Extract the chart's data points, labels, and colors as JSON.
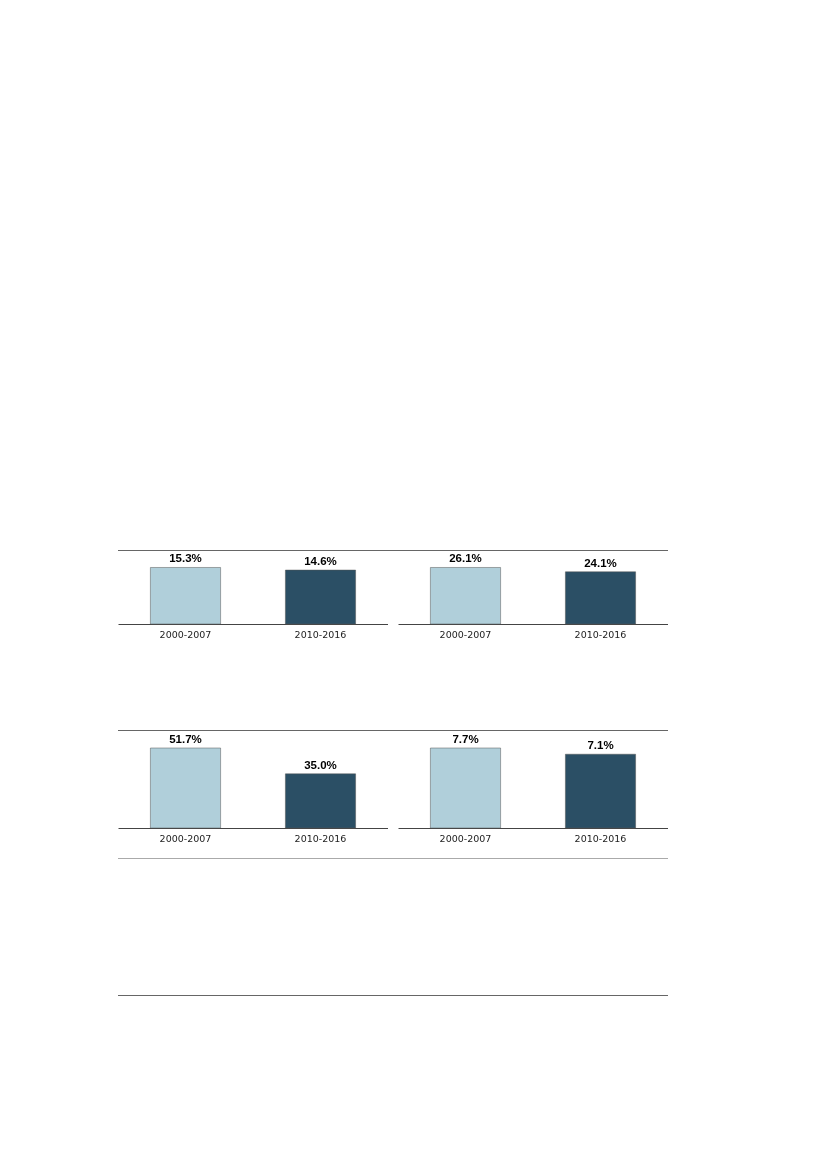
{
  "chart_data": [
    {
      "type": "bar",
      "categories": [
        "2000-2007",
        "2010-2016"
      ],
      "values": [
        15.3,
        14.6
      ],
      "colors": [
        "#b0cfda",
        "#2b4f65"
      ],
      "value_labels": [
        "15.3%",
        "14.6%"
      ]
    },
    {
      "type": "bar",
      "categories": [
        "2000-2007",
        "2010-2016"
      ],
      "values": [
        26.1,
        24.1
      ],
      "colors": [
        "#b0cfda",
        "#2b4f65"
      ],
      "value_labels": [
        "26.1%",
        "24.1%"
      ]
    },
    {
      "type": "bar",
      "categories": [
        "2000-2007",
        "2010-2016"
      ],
      "values": [
        51.7,
        35.0
      ],
      "colors": [
        "#b0cfda",
        "#2b4f65"
      ],
      "value_labels": [
        "51.7%",
        "35.0%"
      ]
    },
    {
      "type": "bar",
      "categories": [
        "2000-2007",
        "2010-2016"
      ],
      "values": [
        7.7,
        7.1
      ],
      "colors": [
        "#b0cfda",
        "#2b4f65"
      ],
      "value_labels": [
        "7.7%",
        "7.1%"
      ]
    }
  ]
}
